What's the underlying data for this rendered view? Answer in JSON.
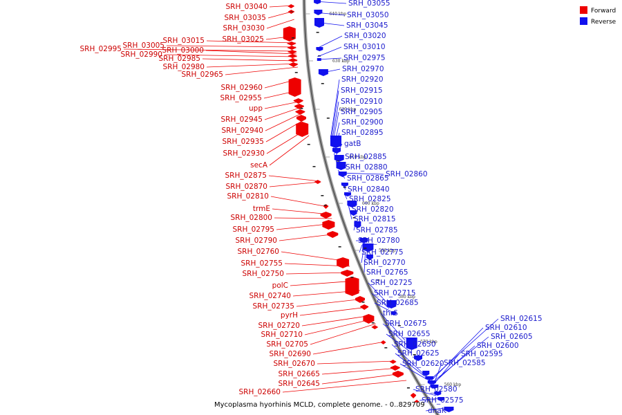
{
  "caption": "Mycoplasma hyorhinis MCLD, complete genome. - 0..829709",
  "legend": [
    {
      "label": "Forward",
      "color": "#ee0000"
    },
    {
      "label": "Reverse",
      "color": "#1111ee"
    }
  ],
  "ticks": [
    "640 kbp",
    "630 kbp",
    "620 kbp",
    "610 kbp",
    "600 kbp",
    "590 kbp",
    "580 kbp",
    "570 kbp",
    "560 kbp"
  ],
  "forward_labels": [
    "SRH_03040",
    "SRH_03035",
    "SRH_03030",
    "SRH_03025",
    "SRH_03015",
    "SRH_03005",
    "SRH_02995",
    "SRH_03000",
    "SRH_02990",
    "SRH_02985",
    "SRH_02980",
    "SRH_02965",
    "SRH_02960",
    "SRH_02955",
    "upp",
    "SRH_02945",
    "SRH_02940",
    "SRH_02935",
    "SRH_02930",
    "secA",
    "SRH_02875",
    "SRH_02870",
    "SRH_02810",
    "trmE",
    "SRH_02800",
    "SRH_02795",
    "SRH_02790",
    "SRH_02760",
    "SRH_02755",
    "SRH_02750",
    "polC",
    "SRH_02740",
    "SRH_02735",
    "pyrH",
    "SRH_02720",
    "SRH_02710",
    "SRH_02705",
    "SRH_02690",
    "SRH_02670",
    "SRH_02665",
    "SRH_02645",
    "SRH_02660"
  ],
  "reverse_labels": [
    "SRH_03055",
    "SRH_03050",
    "SRH_03045",
    "SRH_03020",
    "SRH_03010",
    "SRH_02975",
    "SRH_02970",
    "SRH_02920",
    "SRH_02915",
    "SRH_02910",
    "SRH_02905",
    "SRH_02900",
    "SRH_02895",
    "gatB",
    "SRH_02885",
    "SRH_02880",
    "SRH_02865",
    "SRH_02860",
    "SRH_02840",
    "SRH_02825",
    "SRH_02820",
    "SRH_02815",
    "SRH_02785",
    "SRH_02780",
    "SRH_02775",
    "SRH_02770",
    "SRH_02765",
    "SRH_02725",
    "SRH_02715",
    "SRH_02685",
    "thrS",
    "SRH_02675",
    "SRH_02655",
    "SRH_02650",
    "SRH_02625",
    "SRH_02620",
    "SRH_02615",
    "SRH_02610",
    "SRH_02605",
    "SRH_02600",
    "SRH_02595",
    "SRH_02585",
    "SRH_02580",
    "SRH_02575",
    "dnaK"
  ]
}
